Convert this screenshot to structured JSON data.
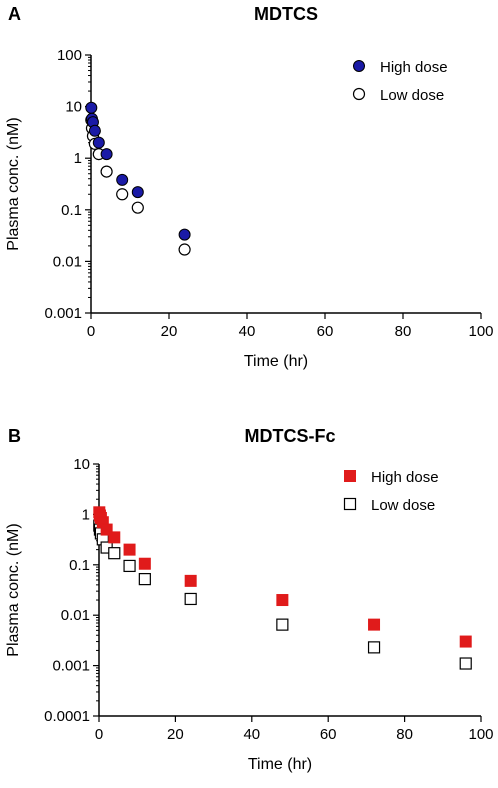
{
  "chart_data": [
    {
      "type": "scatter",
      "panel_label": "A",
      "title": "MDTCS",
      "xlabel": "Time (hr)",
      "ylabel": "Plasma conc. (nM)",
      "xlim": [
        0,
        100
      ],
      "ylim": [
        0.001,
        100
      ],
      "yscale": "log",
      "xticks": [
        0,
        20,
        40,
        60,
        80,
        100
      ],
      "xtick_labels": [
        "0",
        "20",
        "40",
        "60",
        "80",
        "100"
      ],
      "yticks": [
        0.001,
        0.01,
        0.1,
        1,
        10,
        100
      ],
      "ytick_labels": [
        "0.001",
        "0.01",
        "0.1",
        "1",
        "10",
        "100"
      ],
      "grid": false,
      "legend_position": "top-right",
      "series": [
        {
          "name": "High dose",
          "marker": "filled-circle",
          "color": "#1a1aa6",
          "x": [
            0.08,
            0.25,
            0.5,
            1,
            2,
            4,
            8,
            12,
            24
          ],
          "y": [
            9.5,
            5.8,
            5.0,
            3.4,
            2.0,
            1.2,
            0.38,
            0.22,
            0.033
          ]
        },
        {
          "name": "Low dose",
          "marker": "open-circle",
          "color": "#000000",
          "x": [
            0.08,
            0.25,
            0.5,
            1,
            2,
            4,
            8,
            12,
            24
          ],
          "y": [
            5.5,
            3.8,
            2.7,
            1.9,
            1.2,
            0.55,
            0.2,
            0.11,
            0.017
          ]
        }
      ]
    },
    {
      "type": "scatter",
      "panel_label": "B",
      "title": "MDTCS-Fc",
      "xlabel": "Time (hr)",
      "ylabel": "Plasma conc. (nM)",
      "xlim": [
        0,
        100
      ],
      "ylim": [
        0.0001,
        10
      ],
      "yscale": "log",
      "xticks": [
        0,
        20,
        40,
        60,
        80,
        100
      ],
      "xtick_labels": [
        "0",
        "20",
        "40",
        "60",
        "80",
        "100"
      ],
      "yticks": [
        0.0001,
        0.001,
        0.01,
        0.1,
        1,
        10
      ],
      "ytick_labels": [
        "0.0001",
        "0.001",
        "0.01",
        "0.1",
        "1",
        "10"
      ],
      "grid": false,
      "legend_position": "top-right",
      "series": [
        {
          "name": "High dose",
          "marker": "filled-square",
          "color": "#e01b1b",
          "x": [
            0.08,
            0.25,
            0.5,
            1,
            2,
            4,
            8,
            12,
            24,
            48,
            72,
            96
          ],
          "y": [
            1.1,
            0.95,
            0.85,
            0.7,
            0.5,
            0.35,
            0.2,
            0.105,
            0.048,
            0.02,
            0.0065,
            0.003
          ]
        },
        {
          "name": "Low dose",
          "marker": "open-square",
          "color": "#000000",
          "x": [
            0.08,
            0.25,
            0.5,
            1,
            2,
            4,
            8,
            12,
            24,
            48,
            72,
            96
          ],
          "y": [
            0.6,
            0.5,
            0.42,
            0.32,
            0.22,
            0.17,
            0.095,
            0.052,
            0.021,
            0.0065,
            0.0023,
            0.0011
          ]
        }
      ]
    }
  ]
}
